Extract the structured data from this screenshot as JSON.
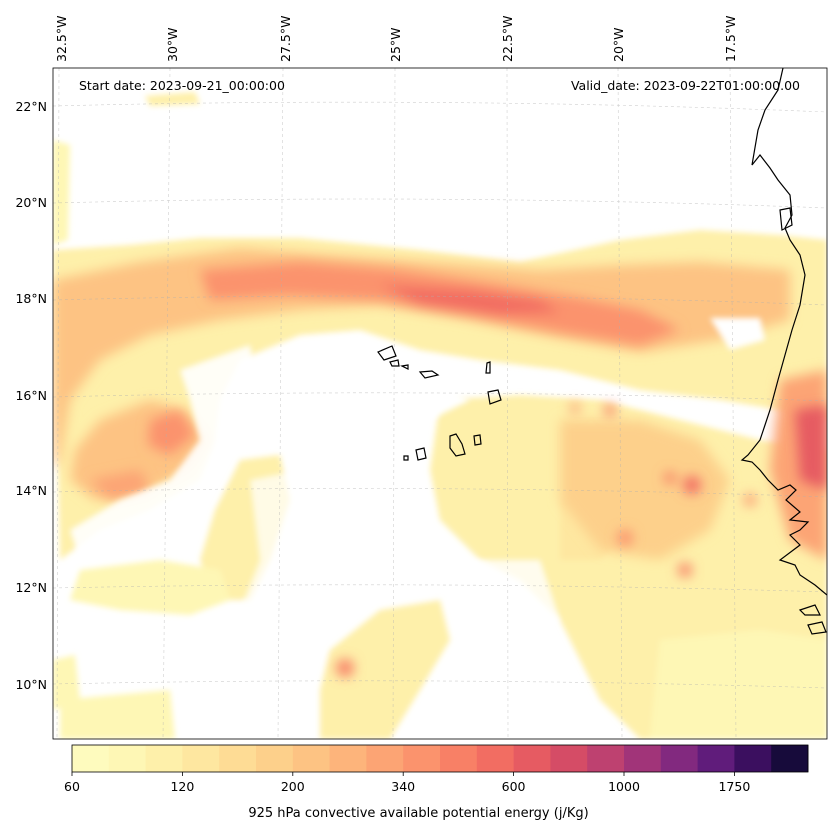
{
  "header": {
    "start_date": "Start date: 2023-09-21_00:00:00",
    "valid_date": "Valid_date: 2023-09-22T01:00:00.00"
  },
  "lon_labels": [
    "32.5°W",
    "30°W",
    "27.5°W",
    "25°W",
    "22.5°W",
    "20°W",
    "17.5°W"
  ],
  "lat_labels": [
    "22°N",
    "20°N",
    "18°N",
    "16°N",
    "14°N",
    "12°N",
    "10°N"
  ],
  "colorbar": {
    "label": "925 hPa convective available potential energy (j/Kg)",
    "ticks": [
      "60",
      "120",
      "200",
      "340",
      "600",
      "1000",
      "1750"
    ],
    "colors": [
      "#fefbbe",
      "#fef7b5",
      "#fef0aa",
      "#fee7a0",
      "#fedc95",
      "#fdd08b",
      "#fdc383",
      "#fdb47b",
      "#fca474",
      "#fb936d",
      "#f88066",
      "#f26d62",
      "#e65b62",
      "#d54c66",
      "#be4170",
      "#a13479",
      "#82297f",
      "#601c7b",
      "#3b0f5f",
      "#170b3b"
    ]
  },
  "map_data": {
    "type": "filled-contour",
    "variable": "925 hPa convective available potential energy",
    "units": "j/Kg",
    "lon_range": [
      -33,
      -15.5
    ],
    "lat_range": [
      9,
      22.8
    ]
  }
}
